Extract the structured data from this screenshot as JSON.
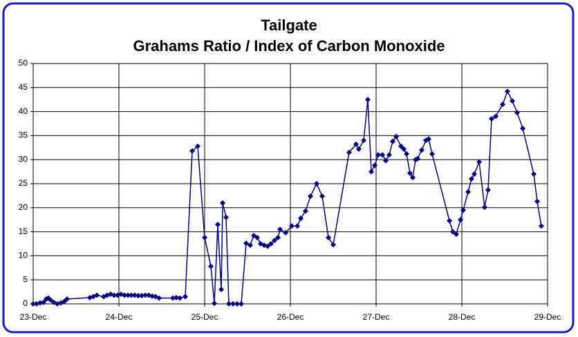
{
  "chart_data": {
    "type": "line",
    "title": "Tailgate",
    "subtitle": "Grahams Ratio / Index of Carbon Monoxide",
    "x": [
      0,
      0.04,
      0.081,
      0.121,
      0.153,
      0.177,
      0.202,
      0.242,
      0.282,
      0.323,
      0.363,
      0.395,
      0.661,
      0.702,
      0.742,
      0.823,
      0.863,
      0.903,
      0.944,
      0.984,
      1.024,
      1.065,
      1.105,
      1.145,
      1.185,
      1.226,
      1.266,
      1.306,
      1.347,
      1.387,
      1.427,
      1.468,
      1.629,
      1.669,
      1.71,
      1.774,
      1.855,
      1.919,
      2,
      2.073,
      2.113,
      2.153,
      2.194,
      2.21,
      2.25,
      2.282,
      2.331,
      2.379,
      2.427,
      2.484,
      2.532,
      2.573,
      2.613,
      2.653,
      2.694,
      2.734,
      2.774,
      2.815,
      2.855,
      2.879,
      2.944,
      3.016,
      3.081,
      3.121,
      3.177,
      3.234,
      3.306,
      3.371,
      3.444,
      3.5,
      3.685,
      3.766,
      3.798,
      3.855,
      3.903,
      3.944,
      3.984,
      4.024,
      4.073,
      4.113,
      4.153,
      4.194,
      4.234,
      4.29,
      4.323,
      4.355,
      4.395,
      4.427,
      4.46,
      4.484,
      4.532,
      4.581,
      4.613,
      4.653,
      4.855,
      4.895,
      4.935,
      4.984,
      5.016,
      5.073,
      5.113,
      5.145,
      5.202,
      5.266,
      5.306,
      5.347,
      5.395,
      5.476,
      5.532,
      5.589,
      5.645,
      5.71,
      5.839,
      5.879,
      5.927
    ],
    "series": [
      {
        "color": "#000080",
        "values": [
          0,
          0,
          0.2,
          0.3,
          1,
          1.2,
          0.8,
          0.3,
          0,
          0.2,
          0.5,
          1,
          1.3,
          1.5,
          1.8,
          1.5,
          1.8,
          2,
          1.8,
          1.8,
          2,
          1.8,
          1.8,
          1.8,
          1.8,
          1.7,
          1.7,
          1.8,
          1.8,
          1.6,
          1.5,
          1.2,
          1.2,
          1.3,
          1.2,
          1.5,
          31.8,
          32.8,
          13.8,
          7.8,
          0.1,
          16.5,
          3,
          21,
          18,
          0,
          0,
          0,
          0,
          12.6,
          12.2,
          14.2,
          13.8,
          12.5,
          12.2,
          12,
          12.5,
          13.2,
          13.8,
          15.5,
          14.8,
          16.2,
          16.2,
          17.8,
          19.3,
          22.4,
          25,
          22.4,
          13.8,
          12.3,
          31.5,
          33.2,
          32.2,
          34,
          42.5,
          27.5,
          28.8,
          31,
          31,
          29.8,
          31,
          33.8,
          34.8,
          32.8,
          32.2,
          31.2,
          27.2,
          26.3,
          30,
          30.2,
          32,
          34,
          34.3,
          31.2,
          17.3,
          15,
          14.5,
          17.5,
          19.5,
          23.3,
          26,
          27,
          29.5,
          20.1,
          23.7,
          38.5,
          39,
          41.5,
          44.2,
          42.2,
          39.8,
          36.5,
          27,
          21.3,
          16.2
        ]
      }
    ],
    "xlim": [
      0,
      6
    ],
    "xticks": [
      {
        "value": 0,
        "label": "23-Dec"
      },
      {
        "value": 1,
        "label": "24-Dec"
      },
      {
        "value": 2,
        "label": "25-Dec"
      },
      {
        "value": 3,
        "label": "26-Dec"
      },
      {
        "value": 4,
        "label": "27-Dec"
      },
      {
        "value": 5,
        "label": "28-Dec"
      },
      {
        "value": 6,
        "label": "29-Dec"
      }
    ],
    "ylim": [
      0,
      50
    ],
    "yticks": [
      0,
      5,
      10,
      15,
      20,
      25,
      30,
      35,
      40,
      45,
      50
    ],
    "grid": true
  }
}
